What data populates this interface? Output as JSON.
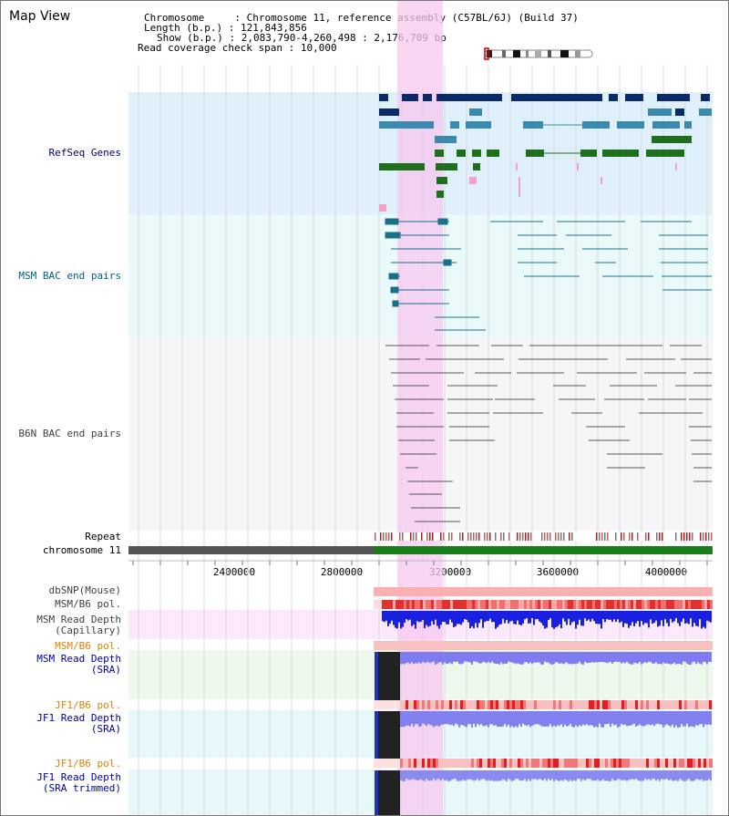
{
  "title": "Map View",
  "info": {
    "chromosome_label": "Chromosome",
    "chromosome_value": "Chromosome 11, reference assembly (C57BL/6J) (Build 37)",
    "length_label": "Length (b.p.)",
    "length_value": "121,843,856",
    "show_label": "Show (b.p.)",
    "show_value": "2,083,790-4,260,498 : 2,176,709 bp",
    "span_label": "Read coverage check span",
    "span_value": "10,000"
  },
  "tracks": {
    "refseq": "RefSeq Genes",
    "msm_bac": "MSM BAC end pairs",
    "b6n_bac": "B6N BAC end pairs",
    "repeat": "Repeat",
    "chromosome": "chromosome 11",
    "dbsnp": "dbSNP(Mouse)",
    "msm_b6_pol_1": "MSM/B6 pol.",
    "msm_depth_cap_1": "MSM Read Depth",
    "msm_depth_cap_2": "(Capillary)",
    "msm_b6_pol_2": "MSM/B6 pol.",
    "msm_depth_sra_1": "MSM Read Depth",
    "msm_depth_sra_2": "(SRA)",
    "jf1_pol_1": "JF1/B6 pol.",
    "jf1_depth_sra_1": "JF1 Read Depth",
    "jf1_depth_sra_2": "(SRA)",
    "jf1_pol_2": "JF1/B6 pol.",
    "jf1_depth_trim_1": "JF1 Read Depth",
    "jf1_depth_trim_2": "(SRA trimmed)"
  },
  "axis": {
    "ticks": [
      "2400000",
      "2800000",
      "3200000",
      "3600000",
      "4000000"
    ]
  },
  "colors": {
    "refseq_label": "#000080",
    "msm_bac_label": "#006080",
    "b6n_bac_label": "#404040",
    "msm_depth_label": "#0000a0",
    "pol_label": "#e08000",
    "highlight": "#f7c8f0"
  }
}
